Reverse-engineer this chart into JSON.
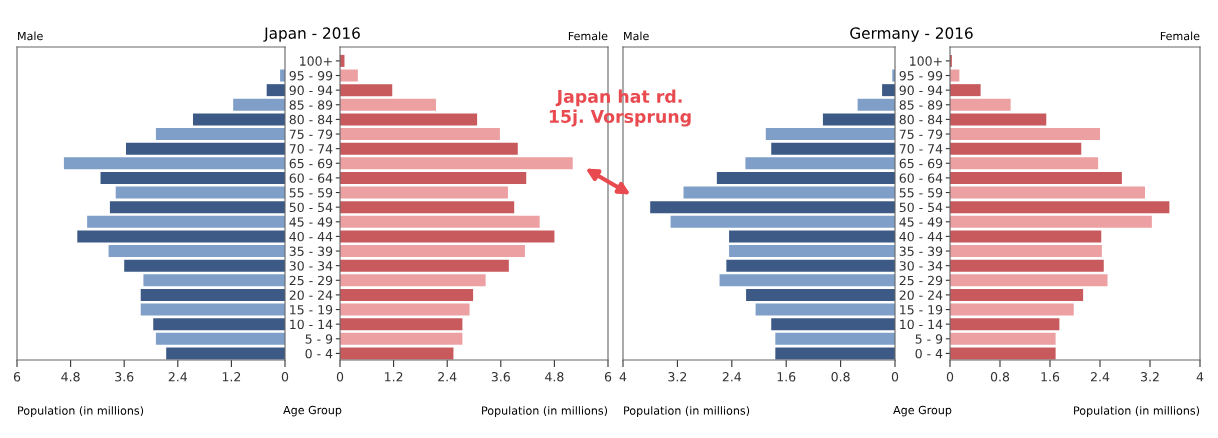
{
  "chart_data": [
    {
      "type": "bar",
      "orientation": "horizontal",
      "title": "Japan - 2016",
      "xlabel": "Population (in millions)",
      "annotations": [
        "Male"
      ],
      "tick_labels": "x",
      "categories": [
        null,
        null,
        null,
        null,
        null,
        null,
        null,
        null,
        null,
        null,
        null,
        null,
        null,
        null,
        null,
        null,
        null,
        null,
        null,
        null,
        null
      ],
      "values": [
        null,
        0.11,
        0.41,
        1.16,
        2.06,
        2.89,
        3.56,
        4.95,
        4.13,
        3.79,
        3.92,
        4.43,
        4.65,
        3.95,
        3.6,
        3.17,
        3.23,
        3.23,
        2.95,
        2.89,
        2.66
      ],
      "colors": [
        "#3d5a87",
        "#7f9fc8",
        "#3d5a87",
        "#7f9fc8",
        "#3d5a87",
        "#7f9fc8",
        "#3d5a87",
        "#7f9fc8",
        "#3d5a87",
        "#7f9fc8",
        "#3d5a87",
        "#7f9fc8",
        "#3d5a87",
        "#7f9fc8",
        "#3d5a87",
        "#7f9fc8",
        "#3d5a87",
        "#7f9fc8",
        "#3d5a87",
        "#7f9fc8",
        "#3d5a87"
      ],
      "xlim": [
        6,
        0
      ],
      "xticks": [
        6,
        4.8,
        3.6,
        2.4,
        1.2,
        0
      ]
    },
    {
      "type": "bar",
      "orientation": "horizontal",
      "xlabel": "Population (in millions)",
      "ylabel": "Age Group",
      "annotations": [
        "Female",
        "Japan hat rd.\n15j. Vorsprung"
      ],
      "categories": [
        "100+",
        "95 - 99",
        "90 - 94",
        "85 - 89",
        "80 - 84",
        "75 - 79",
        "70 - 74",
        "65 - 69",
        "60 - 64",
        "55 - 59",
        "50 - 54",
        "45 - 49",
        "40 - 44",
        "35 - 39",
        "30 - 34",
        "25 - 29",
        "20 - 24",
        "15 - 19",
        "10 - 14",
        "5 - 9",
        "0 - 4"
      ],
      "values": [
        0.1,
        0.4,
        1.17,
        2.15,
        3.07,
        3.58,
        3.98,
        5.21,
        4.17,
        3.76,
        3.9,
        4.47,
        4.8,
        4.14,
        3.78,
        3.26,
        2.98,
        2.9,
        2.74,
        2.74,
        2.54
      ],
      "colors": [
        "#c85a5e",
        "#eca0a2",
        "#c85a5e",
        "#eca0a2",
        "#c85a5e",
        "#eca0a2",
        "#c85a5e",
        "#eca0a2",
        "#c85a5e",
        "#eca0a2",
        "#c85a5e",
        "#eca0a2",
        "#c85a5e",
        "#eca0a2",
        "#c85a5e",
        "#eca0a2",
        "#c85a5e",
        "#eca0a2",
        "#c85a5e",
        "#eca0a2",
        "#c85a5e"
      ],
      "xlim": [
        0,
        6
      ],
      "xticks": [
        0,
        1.2,
        2.4,
        3.6,
        4.8,
        6
      ]
    },
    {
      "type": "bar",
      "orientation": "horizontal",
      "title": "Germany - 2016",
      "xlabel": "Population (in millions)",
      "annotations": [
        "Male"
      ],
      "tick_labels": "x",
      "categories": [
        null,
        null,
        null,
        null,
        null,
        null,
        null,
        null,
        null,
        null,
        null,
        null,
        null,
        null,
        null,
        null,
        null,
        null,
        null,
        null,
        null
      ],
      "values": [
        null,
        0.04,
        0.19,
        0.55,
        1.06,
        1.9,
        1.82,
        2.2,
        2.62,
        3.11,
        3.6,
        3.3,
        2.44,
        2.44,
        2.48,
        2.58,
        2.19,
        2.05,
        1.82,
        1.76,
        1.76
      ],
      "colors": [
        "#3d5a87",
        "#7f9fc8",
        "#3d5a87",
        "#7f9fc8",
        "#3d5a87",
        "#7f9fc8",
        "#3d5a87",
        "#7f9fc8",
        "#3d5a87",
        "#7f9fc8",
        "#3d5a87",
        "#7f9fc8",
        "#3d5a87",
        "#7f9fc8",
        "#3d5a87",
        "#7f9fc8",
        "#3d5a87",
        "#7f9fc8",
        "#3d5a87",
        "#7f9fc8",
        "#3d5a87"
      ],
      "xlim": [
        4,
        0
      ],
      "xticks": [
        4,
        3.2,
        2.4,
        1.6,
        0.8,
        0
      ]
    },
    {
      "type": "bar",
      "orientation": "horizontal",
      "xlabel": "Population (in millions)",
      "ylabel": "Age Group",
      "annotations": [
        "Female"
      ],
      "categories": [
        "100+",
        "95 - 99",
        "90 - 94",
        "85 - 89",
        "80 - 84",
        "75 - 79",
        "70 - 74",
        "65 - 69",
        "60 - 64",
        "55 - 59",
        "50 - 54",
        "45 - 49",
        "40 - 44",
        "35 - 39",
        "30 - 34",
        "25 - 29",
        "20 - 24",
        "15 - 19",
        "10 - 14",
        "5 - 9",
        "0 - 4"
      ],
      "values": [
        0.03,
        0.15,
        0.49,
        0.97,
        1.54,
        2.4,
        2.1,
        2.37,
        2.75,
        3.12,
        3.51,
        3.23,
        2.42,
        2.43,
        2.46,
        2.52,
        2.13,
        1.98,
        1.75,
        1.69,
        1.69
      ],
      "colors": [
        "#c85a5e",
        "#eca0a2",
        "#c85a5e",
        "#eca0a2",
        "#c85a5e",
        "#eca0a2",
        "#c85a5e",
        "#eca0a2",
        "#c85a5e",
        "#eca0a2",
        "#c85a5e",
        "#eca0a2",
        "#c85a5e",
        "#eca0a2",
        "#c85a5e",
        "#eca0a2",
        "#c85a5e",
        "#eca0a2",
        "#c85a5e",
        "#eca0a2",
        "#c85a5e"
      ],
      "xlim": [
        0,
        4
      ],
      "xticks": [
        0,
        0.8,
        1.6,
        2.4,
        3.2,
        4
      ]
    }
  ]
}
